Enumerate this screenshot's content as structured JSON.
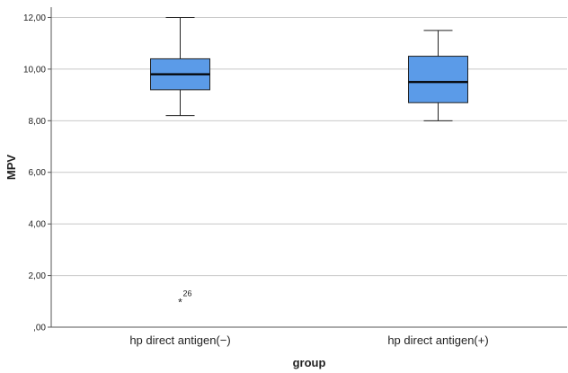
{
  "chart_data": {
    "type": "boxplot",
    "title": "",
    "xlabel": "group",
    "ylabel": "MPV",
    "ylim": [
      0,
      12.4
    ],
    "yticks": [
      {
        "value": 0,
        "label": ",00"
      },
      {
        "value": 2,
        "label": "2,00"
      },
      {
        "value": 4,
        "label": "4,00"
      },
      {
        "value": 6,
        "label": "6,00"
      },
      {
        "value": 8,
        "label": "8,00"
      },
      {
        "value": 10,
        "label": "10,00"
      },
      {
        "value": 12,
        "label": "12,00"
      }
    ],
    "grid": true,
    "categories": [
      "hp direct antigen(−)",
      "hp direct antigen(+)"
    ],
    "boxes": [
      {
        "whisker_low": 8.2,
        "q1": 9.2,
        "median": 9.8,
        "q3": 10.4,
        "whisker_high": 12.0,
        "outliers": [
          {
            "value": 1.0,
            "label": "26",
            "marker": "*"
          }
        ]
      },
      {
        "whisker_low": 8.0,
        "q1": 8.7,
        "median": 9.5,
        "q3": 10.5,
        "whisker_high": 11.5,
        "outliers": []
      }
    ],
    "colors": {
      "box_fill": "#5b9be8",
      "box_stroke": "#222222",
      "grid": "#c8c8c8",
      "axis": "#555555"
    }
  }
}
